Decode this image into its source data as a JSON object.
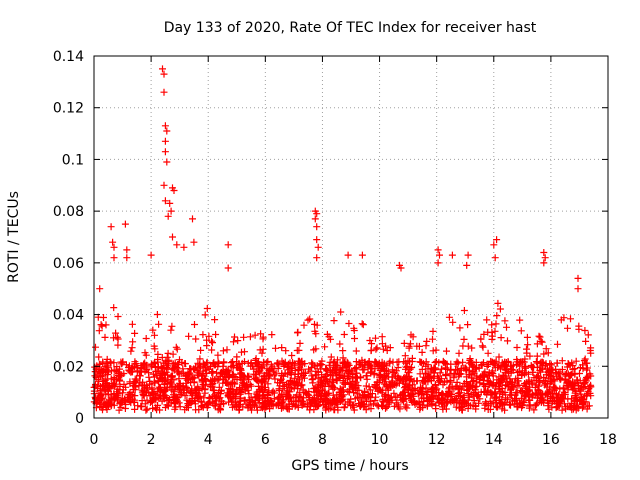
{
  "chart_data": {
    "type": "scatter",
    "title": "Day 133 of 2020, Rate Of TEC Index for receiver hast",
    "xlabel": "GPS time / hours",
    "ylabel": "ROTI / TECUs",
    "xlim": [
      0,
      18
    ],
    "ylim": [
      0,
      0.14
    ],
    "xticks": [
      0,
      2,
      4,
      6,
      8,
      10,
      12,
      14,
      16,
      18
    ],
    "yticks": [
      0,
      0.02,
      0.04,
      0.06,
      0.08,
      0.1,
      0.12,
      0.14
    ],
    "ytick_labels": [
      "0",
      "0.02",
      "0.04",
      "0.06",
      "0.08",
      "0.1",
      "0.12",
      "0.14"
    ],
    "xtick_labels": [
      "0",
      "2",
      "4",
      "6",
      "8",
      "10",
      "12",
      "14",
      "16",
      "18"
    ],
    "grid": true,
    "marker": "+",
    "color": "#ff0000",
    "x_data_range": [
      0,
      17.4
    ],
    "series": [
      {
        "name": "ROTI",
        "note": "dense cloud mostly 0.003–0.04 TECU/s; selected outliers listed",
        "points": [
          [
            0.15,
            0.039
          ],
          [
            0.2,
            0.05
          ],
          [
            0.6,
            0.074
          ],
          [
            0.65,
            0.068
          ],
          [
            0.7,
            0.066
          ],
          [
            0.7,
            0.062
          ],
          [
            1.1,
            0.075
          ],
          [
            1.15,
            0.065
          ],
          [
            1.15,
            0.062
          ],
          [
            2.0,
            0.063
          ],
          [
            2.4,
            0.135
          ],
          [
            2.45,
            0.133
          ],
          [
            2.45,
            0.126
          ],
          [
            2.5,
            0.113
          ],
          [
            2.55,
            0.111
          ],
          [
            2.5,
            0.107
          ],
          [
            2.5,
            0.103
          ],
          [
            2.55,
            0.099
          ],
          [
            2.45,
            0.09
          ],
          [
            2.75,
            0.089
          ],
          [
            2.8,
            0.088
          ],
          [
            2.5,
            0.084
          ],
          [
            2.65,
            0.083
          ],
          [
            2.7,
            0.08
          ],
          [
            2.6,
            0.078
          ],
          [
            2.75,
            0.07
          ],
          [
            2.9,
            0.067
          ],
          [
            3.15,
            0.066
          ],
          [
            3.45,
            0.077
          ],
          [
            3.5,
            0.068
          ],
          [
            4.7,
            0.067
          ],
          [
            4.7,
            0.058
          ],
          [
            7.75,
            0.08
          ],
          [
            7.8,
            0.079
          ],
          [
            7.75,
            0.077
          ],
          [
            7.8,
            0.074
          ],
          [
            7.8,
            0.069
          ],
          [
            7.85,
            0.066
          ],
          [
            7.8,
            0.062
          ],
          [
            8.9,
            0.063
          ],
          [
            9.4,
            0.063
          ],
          [
            10.7,
            0.059
          ],
          [
            10.75,
            0.058
          ],
          [
            12.05,
            0.065
          ],
          [
            12.1,
            0.063
          ],
          [
            12.05,
            0.06
          ],
          [
            12.55,
            0.063
          ],
          [
            13.1,
            0.063
          ],
          [
            13.05,
            0.059
          ],
          [
            14.0,
            0.067
          ],
          [
            14.1,
            0.069
          ],
          [
            14.05,
            0.062
          ],
          [
            15.75,
            0.064
          ],
          [
            15.8,
            0.062
          ],
          [
            15.75,
            0.06
          ],
          [
            16.95,
            0.054
          ],
          [
            16.95,
            0.05
          ],
          [
            17.35,
            0.012
          ]
        ]
      }
    ]
  }
}
